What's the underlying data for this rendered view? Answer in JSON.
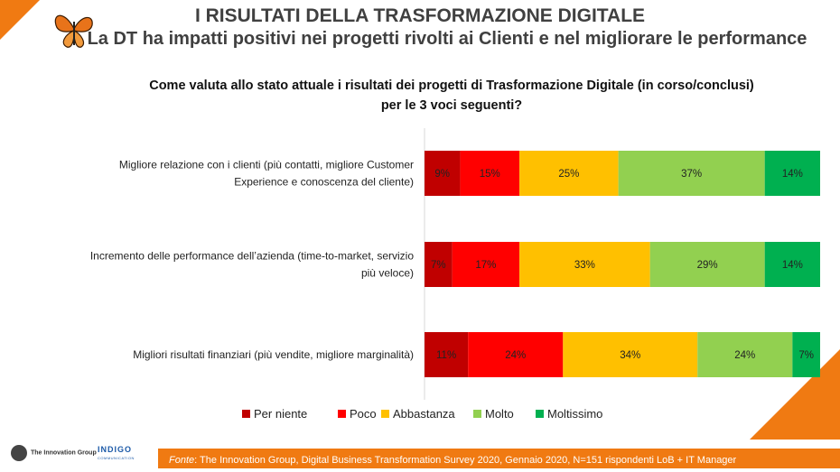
{
  "header": {
    "title": "I RISULTATI DELLA TRASFORMAZIONE DIGITALE",
    "subtitle": "La DT ha impatti positivi nei progetti rivolti ai Clienti e nel migliorare le performance"
  },
  "question": {
    "line1": "Come valuta allo stato attuale i risultati dei progetti di Trasformazione Digitale (in corso/conclusi)",
    "line2": "per le 3 voci seguenti?"
  },
  "chart_data": {
    "type": "bar",
    "orientation": "horizontal",
    "stacked": true,
    "categories": [
      [
        "Migliore relazione con i clienti (più contatti, migliore Customer",
        "Experience e conoscenza del cliente)"
      ],
      [
        "Incremento delle performance dell’azienda (time-to-market, servizio",
        "più veloce)"
      ],
      [
        "Migliori risultati finanziari (più vendite, migliore marginalità)"
      ]
    ],
    "series": [
      {
        "name": "Per niente",
        "color": "#c00000",
        "values": [
          9,
          7,
          11
        ]
      },
      {
        "name": "Poco",
        "color": "#ff0000",
        "values": [
          15,
          17,
          24
        ]
      },
      {
        "name": "Abbastanza",
        "color": "#ffc000",
        "values": [
          25,
          33,
          34
        ]
      },
      {
        "name": "Molto",
        "color": "#92d050",
        "values": [
          37,
          29,
          24
        ]
      },
      {
        "name": "Moltissimo",
        "color": "#00b050",
        "values": [
          14,
          14,
          7
        ]
      }
    ],
    "value_suffix": "%",
    "legend_position": "bottom",
    "grid": false
  },
  "footer": {
    "source_label": "Fonte",
    "source_text": ": The Innovation Group, Digital Business Transformation Survey 2020, Gennaio 2020, N=151 rispondenti LoB + IT Manager",
    "logo1_name": "The Innovation Group",
    "logo2_name": "INDIGO",
    "logo2_sub": "COMMUNICATION"
  },
  "colors": {
    "accent": "#f07a12"
  }
}
